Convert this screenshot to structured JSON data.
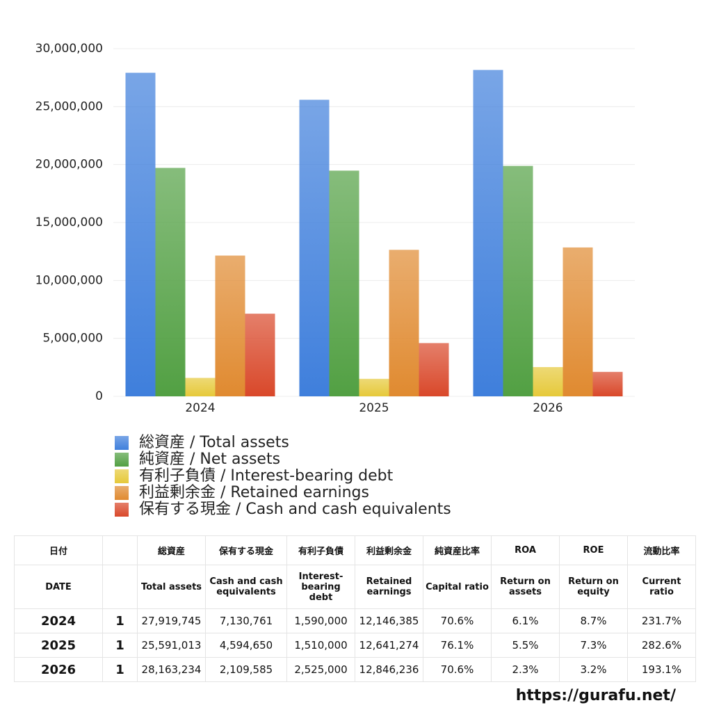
{
  "chart_data": {
    "type": "bar",
    "categories": [
      "2024",
      "2025",
      "2026"
    ],
    "series": [
      {
        "name": "総資産 / Total assets",
        "color": "#3f7fdc",
        "values": [
          27919745,
          25591013,
          28163234
        ]
      },
      {
        "name": "純資産 / Net assets",
        "color": "#52a043",
        "values": [
          19711000,
          19475000,
          19883000
        ]
      },
      {
        "name": "有利子負債 / Interest-bearing debt",
        "color": "#e6c93a",
        "values": [
          1590000,
          1510000,
          2525000
        ]
      },
      {
        "name": "利益剰余金 / Retained earnings",
        "color": "#e08a30",
        "values": [
          12146385,
          12641274,
          12846236
        ]
      },
      {
        "name": "保有する現金 /  Cash and cash equivalents",
        "color": "#d9482a",
        "values": [
          7130761,
          4594650,
          2109585
        ]
      }
    ],
    "ylim": [
      0,
      30000000
    ],
    "yticks": [
      0,
      {
        "value": 5000000,
        "label": "5,000,000"
      },
      {
        "value": 10000000,
        "label": "10,000,000"
      },
      {
        "value": 15000000,
        "label": "15,000,000"
      },
      {
        "value": 20000000,
        "label": "20,000,000"
      },
      {
        "value": 25000000,
        "label": "25,000,000"
      },
      {
        "value": 30000000,
        "label": "30,000,000"
      }
    ],
    "grid": true,
    "legend": "bottom"
  },
  "table": {
    "date_header": {
      "ja": "日付",
      "en": "DATE"
    },
    "columns": [
      {
        "ja": "総資産",
        "en": "Total assets"
      },
      {
        "ja": "保有する現金",
        "en": "Cash and cash equivalents"
      },
      {
        "ja": "有利子負債",
        "en": "Interest-bearing debt"
      },
      {
        "ja": "利益剰余金",
        "en": "Retained earnings"
      },
      {
        "ja": "純資産比率",
        "en": "Capital ratio"
      },
      {
        "ja": "ROA",
        "en": "Return on assets"
      },
      {
        "ja": "ROE",
        "en": "Return on equity"
      },
      {
        "ja": "流動比率",
        "en": "Current ratio"
      }
    ],
    "rows": [
      {
        "date": "2024",
        "flag": "1",
        "cells": [
          "27,919,745",
          "7,130,761",
          "1,590,000",
          "12,146,385",
          "70.6%",
          "6.1%",
          "8.7%",
          "231.7%"
        ]
      },
      {
        "date": "2025",
        "flag": "1",
        "cells": [
          "25,591,013",
          "4,594,650",
          "1,510,000",
          "12,641,274",
          "76.1%",
          "5.5%",
          "7.3%",
          "282.6%"
        ]
      },
      {
        "date": "2026",
        "flag": "1",
        "cells": [
          "28,163,234",
          "2,109,585",
          "2,525,000",
          "12,846,236",
          "70.6%",
          "2.3%",
          "3.2%",
          "193.1%"
        ]
      }
    ]
  },
  "footer": "https://gurafu.net/"
}
